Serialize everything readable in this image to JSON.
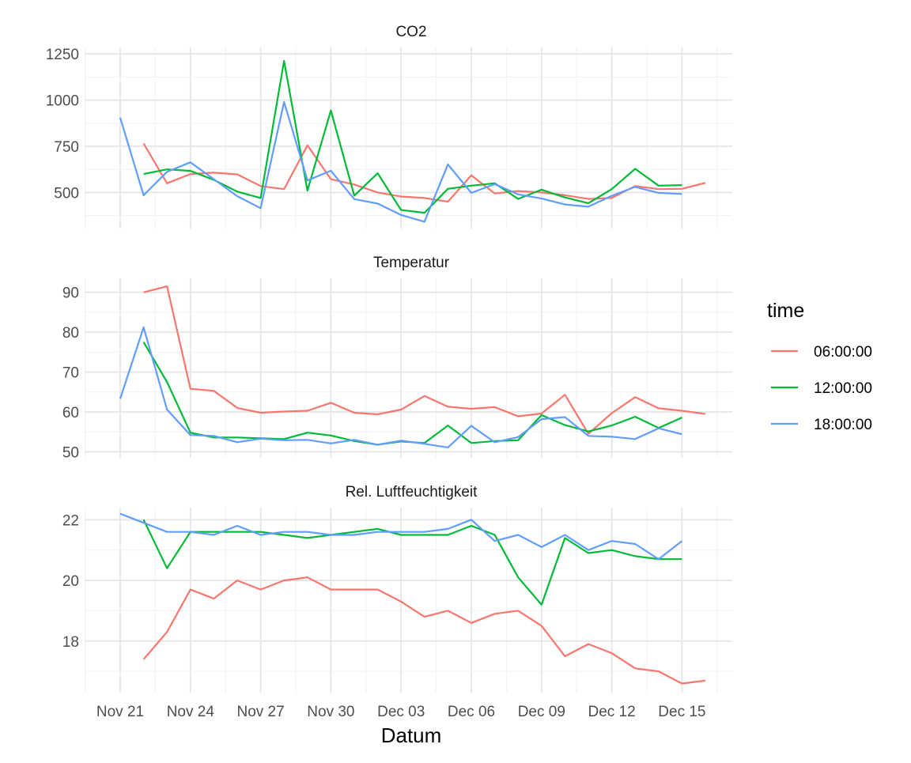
{
  "chart_data": {
    "type": "line",
    "x_title": "Datum",
    "x_tick_labels": [
      "Nov 21",
      "Nov 24",
      "Nov 27",
      "Nov 30",
      "Dec 03",
      "Dec 06",
      "Dec 09",
      "Dec 12",
      "Dec 15"
    ],
    "legend": {
      "title": "time",
      "position": "right",
      "entries": [
        "06:00:00",
        "12:00:00",
        "18:00:00"
      ]
    },
    "colors": {
      "06:00:00": "#F8766D",
      "12:00:00": "#00BA38",
      "18:00:00": "#619CFF"
    },
    "grid": true,
    "x_dates": [
      "Nov 21",
      "Nov 22",
      "Nov 23",
      "Nov 24",
      "Nov 25",
      "Nov 26",
      "Nov 27",
      "Nov 28",
      "Nov 29",
      "Nov 30",
      "Dec 01",
      "Dec 02",
      "Dec 03",
      "Dec 04",
      "Dec 05",
      "Dec 06",
      "Dec 07",
      "Dec 08",
      "Dec 09",
      "Dec 10",
      "Dec 11",
      "Dec 12",
      "Dec 13",
      "Dec 14",
      "Dec 15",
      "Dec 16"
    ],
    "panels": [
      {
        "title": "CO2",
        "ylim": [
          305,
          1285
        ],
        "yticks": [
          500,
          750,
          1000,
          1250
        ],
        "yticks_labels": [
          "500",
          "750",
          "1000",
          "1250"
        ],
        "series": [
          {
            "name": "06:00:00",
            "values": [
              null,
              765,
              550,
              600,
              607,
              598,
              535,
              518,
              755,
              572,
              543,
              500,
              478,
              470,
              450,
              593,
              495,
              508,
              500,
              485,
              465,
              470,
              535,
              518,
              520,
              552
            ]
          },
          {
            "name": "12:00:00",
            "values": [
              null,
              600,
              625,
              617,
              568,
              505,
              470,
              1212,
              510,
              944,
              483,
              604,
              405,
              390,
              520,
              537,
              550,
              465,
              515,
              473,
              442,
              518,
              628,
              537,
              540,
              null
            ]
          },
          {
            "name": "18:00:00",
            "values": [
              905,
              485,
              612,
              663,
              572,
              480,
              415,
              990,
              565,
              618,
              464,
              440,
              378,
              342,
              652,
              498,
              545,
              490,
              467,
              435,
              423,
              482,
              530,
              498,
              492,
              null
            ]
          }
        ]
      },
      {
        "title": "Temperatur",
        "ylim": [
          48.5,
          93.5
        ],
        "yticks": [
          50,
          60,
          70,
          80,
          90
        ],
        "yticks_labels": [
          "50",
          "60",
          "70",
          "80",
          "90"
        ],
        "series": [
          {
            "name": "06:00:00",
            "values": [
              null,
              90,
              91.5,
              65.8,
              65.3,
              61,
              59.8,
              60.1,
              60.3,
              62.3,
              59.8,
              59.4,
              60.6,
              64,
              61.3,
              60.8,
              61.2,
              58.9,
              59.6,
              64.3,
              54.5,
              59.7,
              63.7,
              60.9,
              60.3,
              59.5
            ]
          },
          {
            "name": "12:00:00",
            "values": [
              null,
              77.5,
              67.5,
              54.8,
              53.6,
              53.6,
              53.4,
              53.2,
              54.8,
              54.1,
              52.7,
              51.8,
              52.6,
              52.2,
              56.6,
              52.2,
              52.7,
              52.9,
              59.2,
              56.7,
              55.1,
              56.6,
              58.8,
              56,
              58.6,
              null
            ]
          },
          {
            "name": "18:00:00",
            "values": [
              63.3,
              81.2,
              60.6,
              54.2,
              54,
              52.4,
              53.3,
              52.9,
              53,
              52.1,
              53,
              51.8,
              52.8,
              52,
              51.1,
              56.5,
              52.4,
              53.7,
              58.2,
              58.7,
              54,
              53.8,
              53.2,
              55.9,
              54.4,
              null
            ]
          }
        ]
      },
      {
        "title": "Rel. Luftfeuchtigkeit",
        "ylim": [
          16.3,
          22.4
        ],
        "yticks": [
          18,
          20,
          22
        ],
        "yticks_labels": [
          "18",
          "20",
          "22"
        ],
        "series": [
          {
            "name": "06:00:00",
            "values": [
              null,
              17.4,
              18.3,
              19.7,
              19.4,
              20,
              19.7,
              20,
              20.1,
              19.7,
              19.7,
              19.7,
              19.3,
              18.8,
              19,
              18.6,
              18.9,
              19,
              18.5,
              17.5,
              17.9,
              17.6,
              17.1,
              17,
              16.6,
              16.7
            ]
          },
          {
            "name": "12:00:00",
            "values": [
              null,
              22,
              20.4,
              21.6,
              21.6,
              21.6,
              21.6,
              21.5,
              21.4,
              21.5,
              21.6,
              21.7,
              21.5,
              21.5,
              21.5,
              21.8,
              21.5,
              20.1,
              19.2,
              21.4,
              20.9,
              21,
              20.8,
              20.7,
              20.7,
              null
            ]
          },
          {
            "name": "18:00:00",
            "values": [
              22.2,
              21.9,
              21.6,
              21.6,
              21.5,
              21.8,
              21.5,
              21.6,
              21.6,
              21.5,
              21.5,
              21.6,
              21.6,
              21.6,
              21.7,
              22,
              21.3,
              21.5,
              21.1,
              21.5,
              21,
              21.3,
              21.2,
              20.7,
              21.3,
              null
            ]
          }
        ]
      }
    ]
  }
}
